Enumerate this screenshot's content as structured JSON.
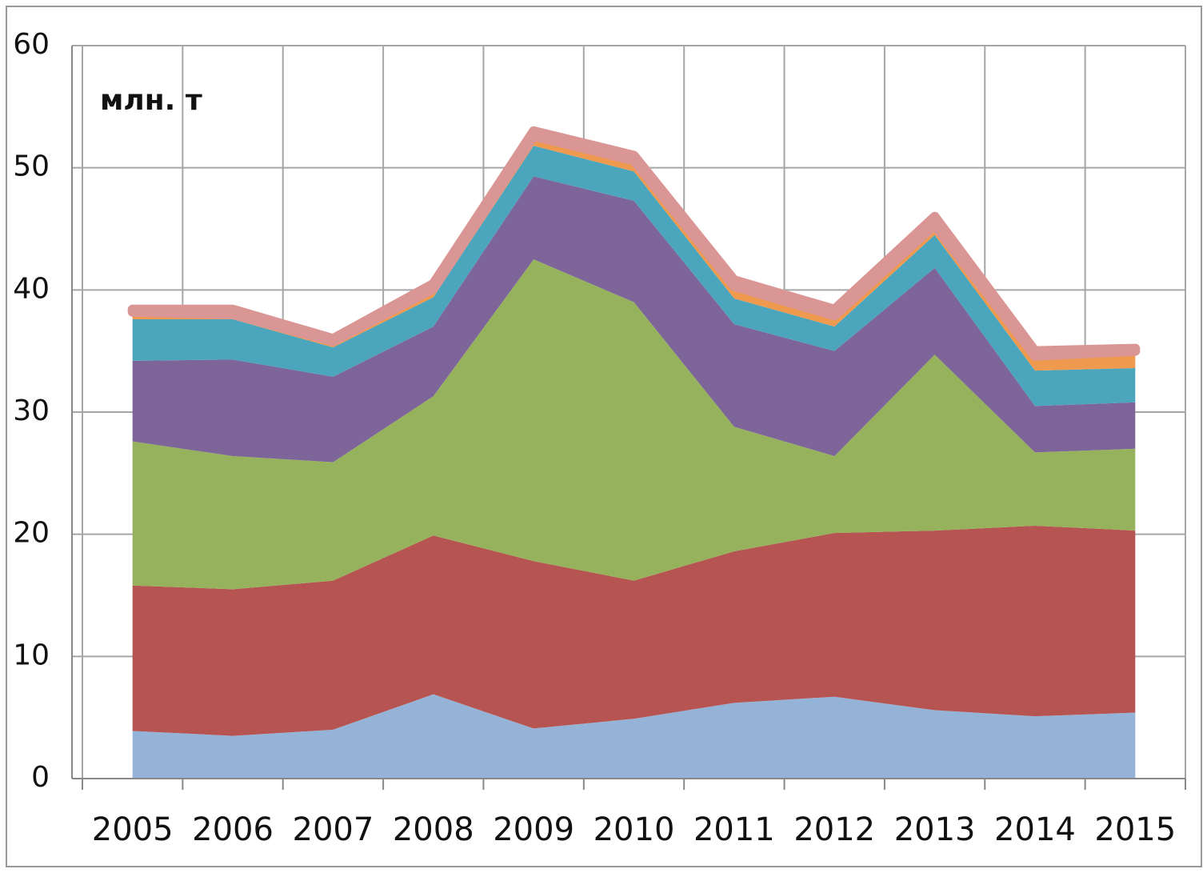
{
  "chart_data": {
    "type": "stacked_area",
    "annotation": "млн. т",
    "categories": [
      "2005",
      "2006",
      "2007",
      "2008",
      "2009",
      "2010",
      "2011",
      "2012",
      "2013",
      "2014",
      "2015"
    ],
    "series": [
      {
        "color": "#95b3d7",
        "values": [
          3.9,
          3.5,
          4.0,
          6.9,
          4.1,
          4.9,
          6.2,
          6.7,
          5.6,
          5.1,
          5.4
        ]
      },
      {
        "color": "#b65451",
        "values": [
          11.9,
          12.0,
          12.2,
          13.0,
          13.7,
          11.3,
          12.4,
          13.4,
          14.7,
          15.6,
          14.9
        ]
      },
      {
        "color": "#96b25c",
        "values": [
          11.8,
          10.9,
          9.7,
          11.4,
          24.7,
          22.8,
          10.2,
          6.3,
          14.4,
          6.0,
          6.7
        ]
      },
      {
        "color": "#7e6599",
        "values": [
          6.6,
          7.9,
          7.0,
          5.7,
          6.8,
          8.3,
          8.4,
          8.6,
          7.1,
          3.8,
          3.8
        ]
      },
      {
        "color": "#4aa5bd",
        "values": [
          3.4,
          3.3,
          2.4,
          2.4,
          2.5,
          2.4,
          2.1,
          2.0,
          2.7,
          2.9,
          2.8
        ]
      },
      {
        "color": "#f09a4f",
        "values": [
          0.6,
          0.4,
          0.5,
          0.7,
          0.8,
          0.9,
          1.0,
          0.9,
          0.8,
          1.2,
          1.4
        ]
      },
      {
        "color": "#d99694",
        "values": [
          0.2,
          0.4,
          0.2,
          0.4,
          0.4,
          0.4,
          0.5,
          0.5,
          0.7,
          0.4,
          0.2
        ]
      }
    ],
    "ylim": [
      0,
      60
    ],
    "yticks": [
      0,
      10,
      20,
      30,
      40,
      50,
      60
    ],
    "grid": true
  }
}
